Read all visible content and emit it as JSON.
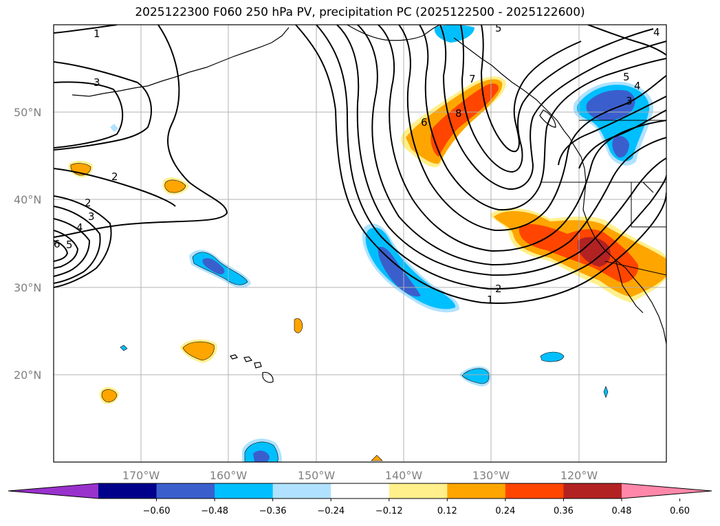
{
  "title": "2025122300 F060 250 hPa PV, precipitation PC (2025122500 - 2025122600)",
  "latitude_labels": [
    "50°N",
    "40°N",
    "30°N",
    "20°N"
  ],
  "longitude_labels": [
    "170°W",
    "160°W",
    "150°W",
    "140°W",
    "130°W",
    "120°W"
  ],
  "colorbar": {
    "ticks": [
      "−0.60",
      "−0.48",
      "−0.36",
      "−0.24",
      "−0.12",
      "0.12",
      "0.24",
      "0.36",
      "0.48",
      "0.60"
    ],
    "colors": [
      "#9932cc",
      "#00008b",
      "#3a5fcd",
      "#00bfff",
      "#b0e2ff",
      "#ffffff",
      "#fff08c",
      "#ffa500",
      "#ff4500",
      "#b22222",
      "#ff88aa"
    ]
  },
  "pv_contour_labels": [
    "1",
    "3",
    "2",
    "2",
    "3",
    "4",
    "5",
    "6",
    "5",
    "6",
    "7",
    "8",
    "5",
    "4",
    "3",
    "2",
    "1",
    "4"
  ],
  "colors": {
    "gridline": "#b0b0b0",
    "coast": "#000000",
    "contour": "#000000"
  }
}
